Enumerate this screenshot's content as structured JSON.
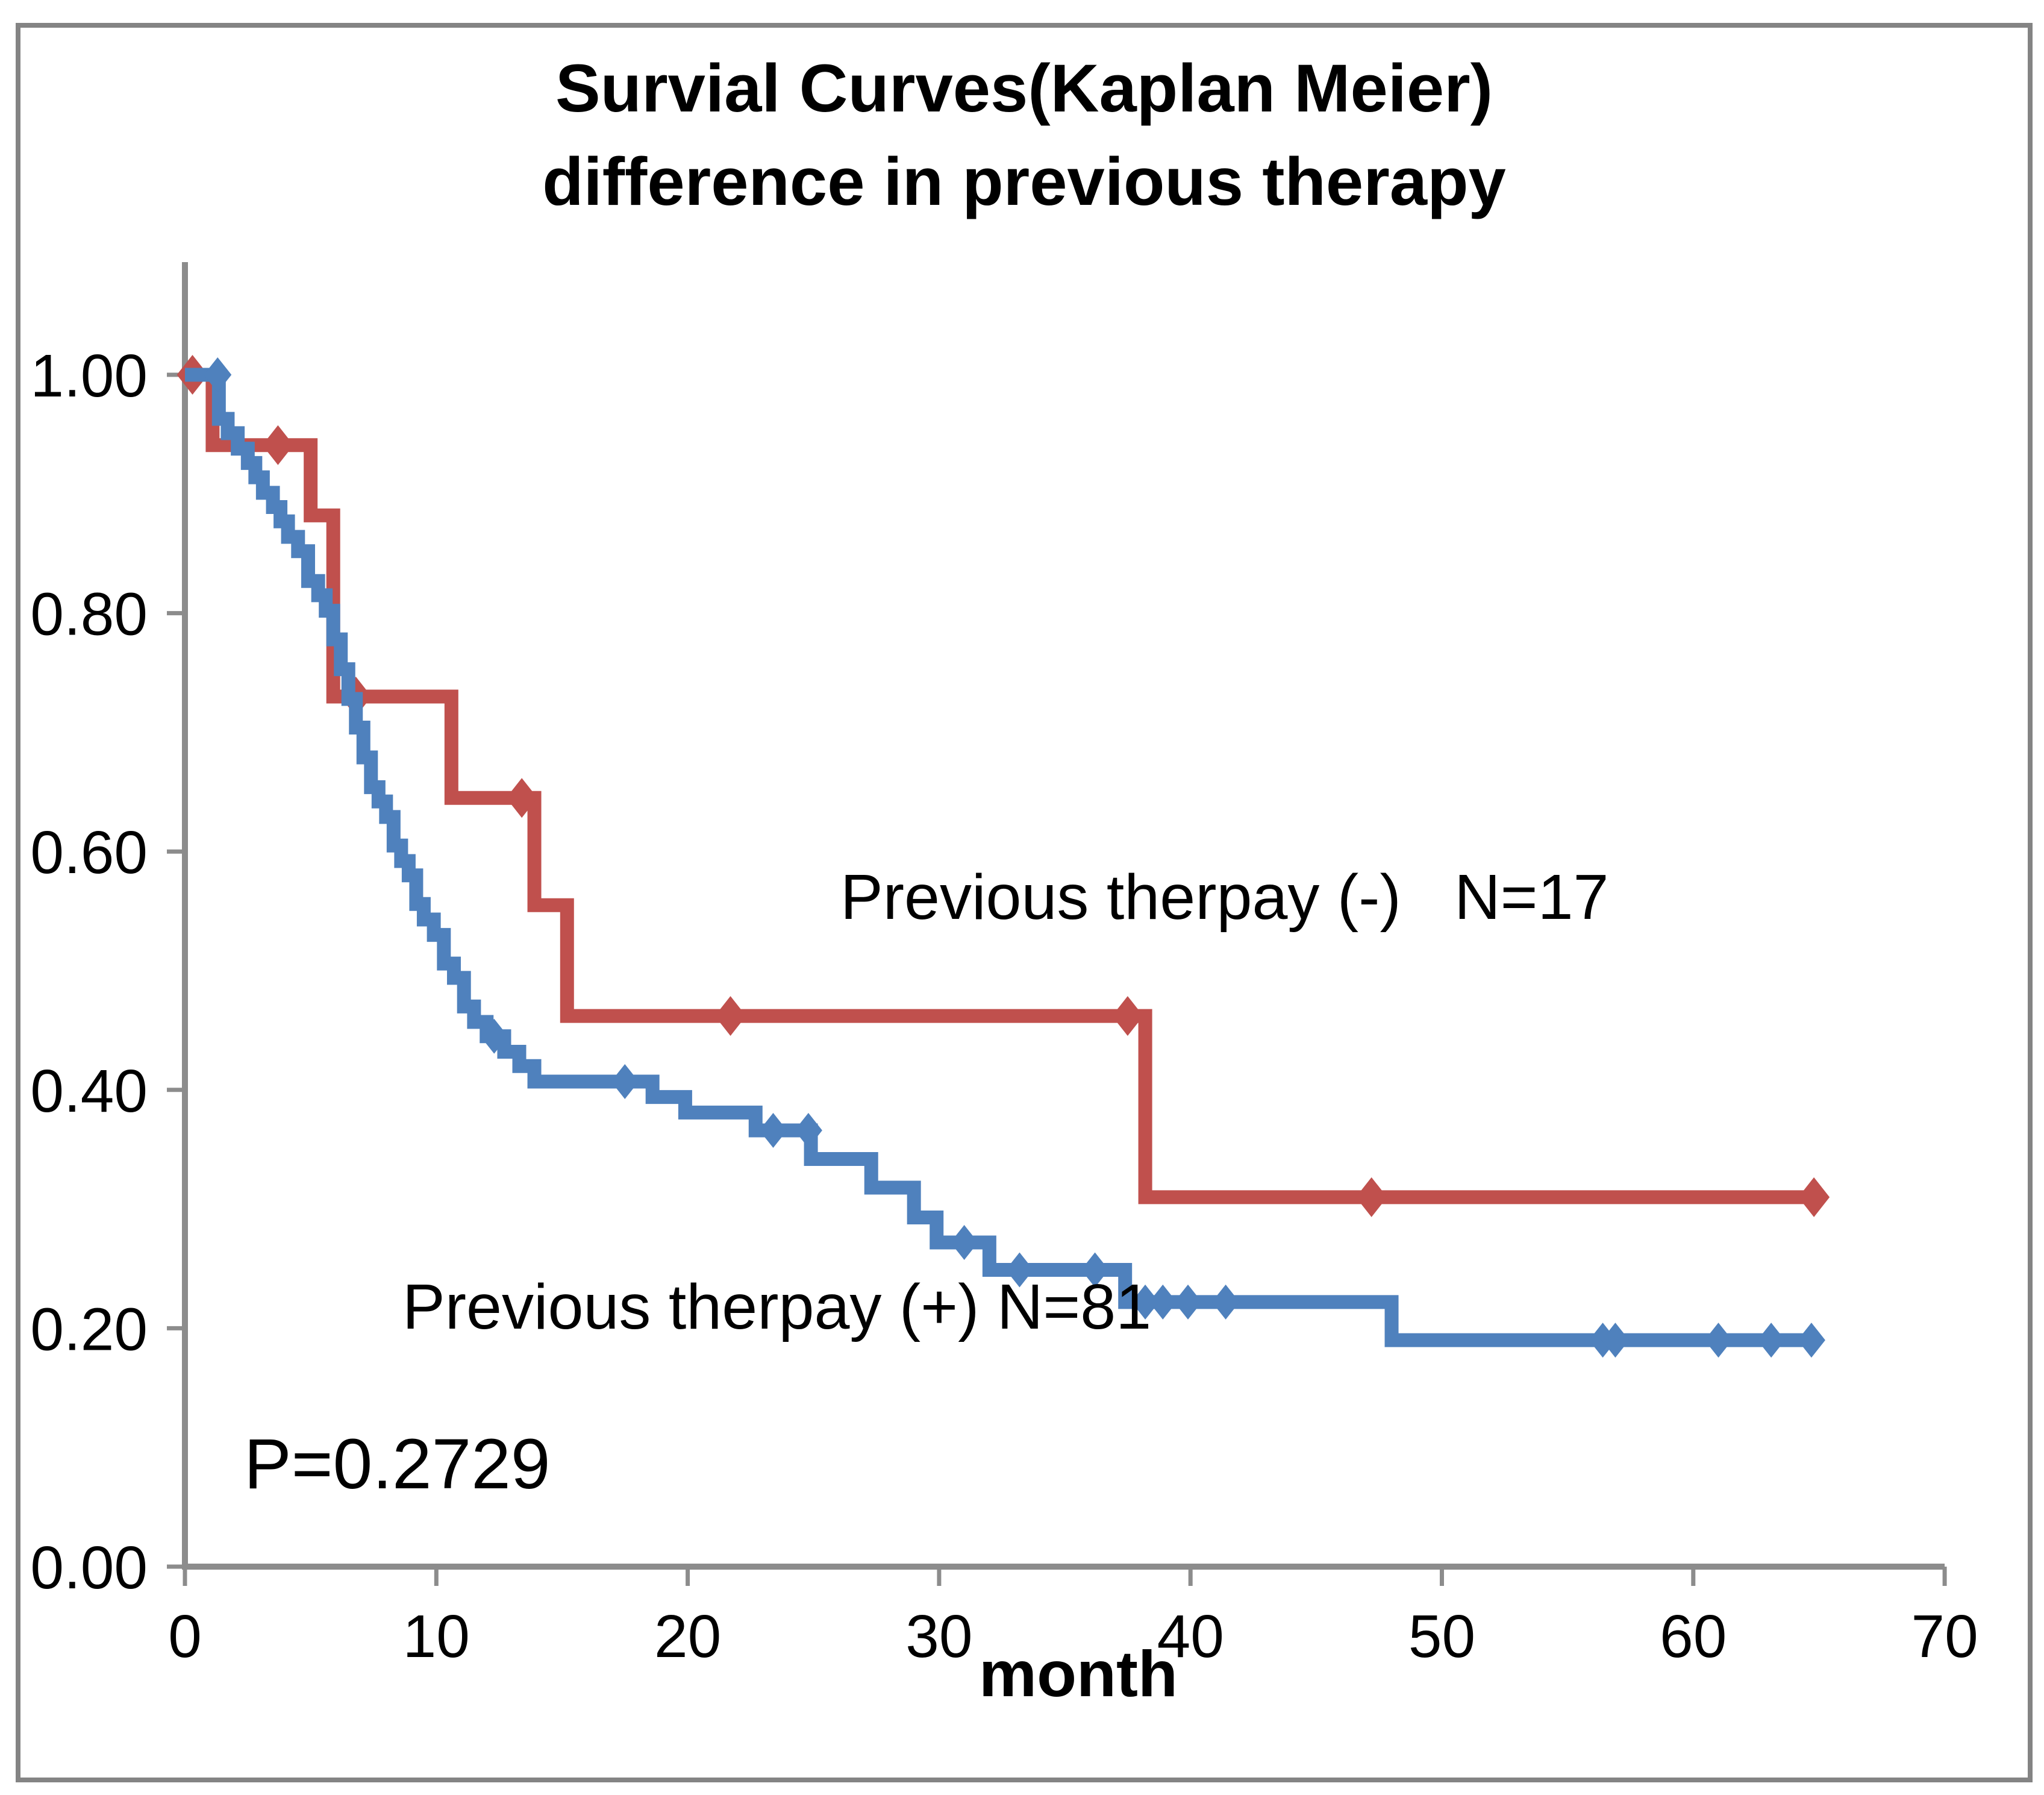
{
  "chart_data": {
    "type": "line",
    "subtype": "kaplan-meier-step",
    "title": "Survial Curves(Kaplan Meier)",
    "subtitle": "difference in previous therapy",
    "xlabel": "month",
    "ylabel": "",
    "xlim": [
      0,
      70
    ],
    "ylim": [
      0.0,
      1.0
    ],
    "grid": false,
    "x_ticks": [
      0,
      10,
      20,
      30,
      40,
      50,
      60,
      70
    ],
    "y_ticks": [
      {
        "value": 1.0,
        "label": "1.00"
      },
      {
        "value": 0.8,
        "label": "0.80"
      },
      {
        "value": 0.6,
        "label": "0.60"
      },
      {
        "value": 0.4,
        "label": "0.40"
      },
      {
        "value": 0.2,
        "label": "0.20"
      },
      {
        "value": 0.0,
        "label": "0.00"
      }
    ],
    "p_value_label": "P=0.2729",
    "series": [
      {
        "name": "Previous therpay (-)   N=17",
        "n": 17,
        "color": "#C0504D",
        "line_end": 65.0,
        "steps": [
          [
            0,
            1.0
          ],
          [
            1.1,
            0.941
          ],
          [
            5.0,
            0.882
          ],
          [
            5.9,
            0.73
          ],
          [
            10.6,
            0.645
          ],
          [
            13.9,
            0.555
          ],
          [
            15.2,
            0.462
          ],
          [
            38.2,
            0.31
          ]
        ],
        "markers": [
          [
            0.3,
            1.0
          ],
          [
            3.7,
            0.941
          ],
          [
            6.8,
            0.73
          ],
          [
            13.4,
            0.645
          ],
          [
            21.7,
            0.462
          ],
          [
            37.5,
            0.462
          ],
          [
            47.2,
            0.31
          ],
          [
            64.8,
            0.31
          ]
        ]
      },
      {
        "name": "Previous therpay (+) N=81",
        "n": 81,
        "color": "#4F81BD",
        "line_end": 65.0,
        "steps": [
          [
            0,
            1.0
          ],
          [
            1.35,
            0.963
          ],
          [
            1.7,
            0.951
          ],
          [
            2.1,
            0.938
          ],
          [
            2.5,
            0.926
          ],
          [
            2.8,
            0.914
          ],
          [
            3.1,
            0.901
          ],
          [
            3.5,
            0.889
          ],
          [
            3.8,
            0.877
          ],
          [
            4.1,
            0.864
          ],
          [
            4.5,
            0.852
          ],
          [
            4.9,
            0.827
          ],
          [
            5.3,
            0.815
          ],
          [
            5.6,
            0.802
          ],
          [
            5.9,
            0.778
          ],
          [
            6.2,
            0.753
          ],
          [
            6.5,
            0.728
          ],
          [
            6.8,
            0.704
          ],
          [
            7.1,
            0.679
          ],
          [
            7.4,
            0.654
          ],
          [
            7.7,
            0.642
          ],
          [
            8.0,
            0.629
          ],
          [
            8.3,
            0.605
          ],
          [
            8.6,
            0.592
          ],
          [
            8.9,
            0.58
          ],
          [
            9.2,
            0.556
          ],
          [
            9.5,
            0.543
          ],
          [
            9.9,
            0.53
          ],
          [
            10.3,
            0.506
          ],
          [
            10.7,
            0.494
          ],
          [
            11.1,
            0.47
          ],
          [
            11.5,
            0.457
          ],
          [
            12.0,
            0.445
          ],
          [
            12.7,
            0.432
          ],
          [
            13.3,
            0.42
          ],
          [
            13.9,
            0.407
          ],
          [
            18.6,
            0.394
          ],
          [
            19.9,
            0.381
          ],
          [
            22.7,
            0.366
          ],
          [
            24.9,
            0.342
          ],
          [
            27.3,
            0.318
          ],
          [
            29.0,
            0.293
          ],
          [
            29.9,
            0.272
          ],
          [
            32.0,
            0.249
          ],
          [
            37.4,
            0.222
          ],
          [
            48.0,
            0.19
          ]
        ],
        "markers": [
          [
            1.3,
            1.0
          ],
          [
            12.3,
            0.445
          ],
          [
            17.5,
            0.407
          ],
          [
            23.4,
            0.366
          ],
          [
            24.8,
            0.366
          ],
          [
            31.0,
            0.272
          ],
          [
            33.2,
            0.249
          ],
          [
            36.2,
            0.249
          ],
          [
            38.2,
            0.222
          ],
          [
            38.9,
            0.222
          ],
          [
            39.9,
            0.222
          ],
          [
            41.4,
            0.222
          ],
          [
            56.4,
            0.19
          ],
          [
            56.9,
            0.19
          ],
          [
            61.0,
            0.19
          ],
          [
            63.1,
            0.19
          ],
          [
            64.7,
            0.19
          ]
        ]
      }
    ],
    "annotations": [
      {
        "id": "legend_minus",
        "text": "Previous therpay (-)   N=17"
      },
      {
        "id": "legend_plus",
        "text": "Previous therpay (+) N=81"
      },
      {
        "id": "p_value",
        "text": "P=0.2729"
      }
    ]
  },
  "styles": {
    "series_minus_color": "#C0504D",
    "series_plus_color": "#4F81BD",
    "axis_color": "#8C8C8C",
    "border_color": "#848484",
    "text_color": "#000000",
    "background": "#FFFFFF"
  }
}
